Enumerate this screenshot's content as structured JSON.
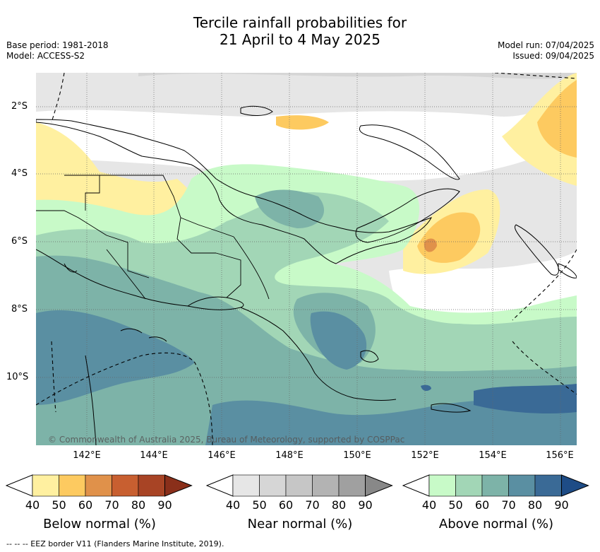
{
  "title_line1": "Tercile rainfall probabilities for",
  "title_line2": "21 April to 4 May 2025",
  "meta_left": [
    "Base period: 1981-2018",
    "Model: ACCESS-S2"
  ],
  "meta_right": [
    "Model run: 07/04/2025",
    "Issued: 09/04/2025"
  ],
  "lat_labels": [
    "2°S",
    "4°S",
    "6°S",
    "8°S",
    "10°S"
  ],
  "lon_labels": [
    "142°E",
    "144°E",
    "146°E",
    "148°E",
    "150°E",
    "152°E",
    "154°E",
    "156°E"
  ],
  "copyright": "© Commonwealth of Australia 2025, Bureau of Meteorology, supported by COSPPac",
  "legends": [
    {
      "title": "Below normal (%)",
      "ticks": [
        "40",
        "50",
        "60",
        "70",
        "80",
        "90"
      ],
      "colors": [
        "#ffffff",
        "#fff0a0",
        "#fdca60",
        "#e0914a",
        "#c85f30",
        "#a84425",
        "#8a2f1a"
      ]
    },
    {
      "title": "Near normal (%)",
      "ticks": [
        "40",
        "50",
        "60",
        "70",
        "80",
        "90"
      ],
      "colors": [
        "#ffffff",
        "#e6e6e6",
        "#d6d6d6",
        "#c6c6c6",
        "#b3b3b3",
        "#a0a0a0",
        "#888888"
      ]
    },
    {
      "title": "Above normal (%)",
      "ticks": [
        "40",
        "50",
        "60",
        "70",
        "80",
        "90"
      ],
      "colors": [
        "#ffffff",
        "#c8fac8",
        "#a2d6b6",
        "#7db3a8",
        "#5a8fa2",
        "#3a6a96",
        "#1e4c86"
      ]
    }
  ],
  "footnote": "-- -- -- EEZ border V11 (Flanders Marine Institute, 2019)."
}
